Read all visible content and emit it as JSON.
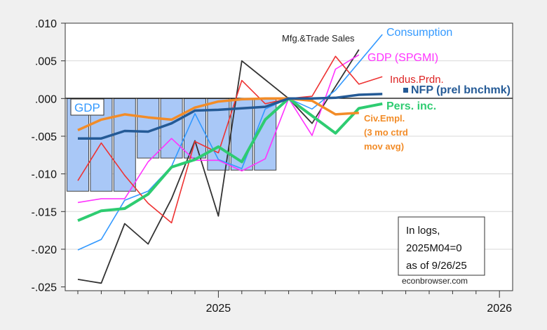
{
  "chart_data": {
    "type": "line",
    "title": "",
    "xlabel": "",
    "ylabel": "",
    "ylim": [
      -0.0255,
      0.01
    ],
    "grid": true,
    "x": [
      "2024M07",
      "2024M08",
      "2024M09",
      "2024M10",
      "2024M11",
      "2024M12",
      "2025M01",
      "2025M02",
      "2025M03",
      "2025M04",
      "2025M05",
      "2025M06",
      "2025M07",
      "2025M08"
    ],
    "x_tick_labels": [
      "2025",
      "2026"
    ],
    "y_ticks": [
      0.01,
      0.005,
      0.0,
      -0.005,
      -0.01,
      -0.015,
      -0.02,
      -0.025
    ],
    "y_tick_labels": [
      ".010",
      ".005",
      ".000",
      "-.005",
      "-.010",
      "-.015",
      "-.020",
      "-.025"
    ],
    "bars": {
      "name": "GDP",
      "color": "#a9c8f7",
      "values": [
        -0.0123,
        -0.0123,
        -0.0123,
        -0.0079,
        -0.0079,
        -0.0079,
        -0.0095,
        -0.0095,
        -0.0095,
        0,
        0,
        0
      ]
    },
    "series": [
      {
        "name": "Mfg.&Trade Sales",
        "color": "#333333",
        "width": 1.8,
        "values": [
          -0.024,
          -0.0245,
          -0.0166,
          -0.0193,
          -0.0133,
          -0.0056,
          -0.0156,
          0.005,
          0.0025,
          0,
          -0.0033,
          0.0016,
          0.0065,
          null
        ]
      },
      {
        "name": "Consumption",
        "color": "#3399ff",
        "width": 1.6,
        "values": [
          -0.0201,
          -0.0187,
          -0.0135,
          -0.0123,
          -0.009,
          -0.002,
          -0.0081,
          -0.0093,
          -0.0014,
          0,
          -0.0014,
          0.0011,
          0.0048,
          0.0085
        ]
      },
      {
        "name": "GDP (SPGMI)",
        "color": "#ff33ff",
        "width": 1.6,
        "values": [
          -0.0138,
          -0.0133,
          -0.0133,
          -0.0084,
          -0.0053,
          -0.0082,
          -0.0082,
          -0.0096,
          -0.008,
          0,
          -0.0049,
          0.0039,
          0.0058,
          null
        ]
      },
      {
        "name": "Indus.Prdn.",
        "color": "#ee3333",
        "width": 1.6,
        "values": [
          -0.0109,
          -0.0059,
          -0.0102,
          -0.0139,
          -0.0165,
          -0.0057,
          -0.0072,
          0.0024,
          -0.0007,
          0,
          0.0003,
          0.0056,
          0.0019,
          0.0029
        ]
      },
      {
        "name": "Pers. inc.",
        "color": "#2ecc71",
        "width": 4,
        "values": [
          -0.0162,
          -0.0149,
          -0.0146,
          -0.0127,
          -0.0091,
          -0.0081,
          -0.0064,
          -0.0084,
          -0.0028,
          0,
          -0.0023,
          -0.0046,
          -0.0013,
          -0.0007
        ]
      },
      {
        "name": "Civ.Empl.",
        "color": "#f28c28",
        "width": 3.5,
        "values": [
          -0.0042,
          -0.0028,
          -0.0021,
          -0.0025,
          -0.0028,
          -0.0012,
          -0.0004,
          -0.0001,
          0.0,
          0,
          -0.0003,
          -0.0021,
          -0.0019,
          null
        ]
      },
      {
        "name": "NFP (prel bnchmk)",
        "color": "#245a96",
        "width": 3.5,
        "values": [
          -0.0053,
          -0.0053,
          -0.0043,
          -0.0044,
          -0.0033,
          -0.0016,
          -0.0015,
          -0.0013,
          -0.0011,
          0,
          0.0,
          0.0001,
          0.0005,
          0.0006
        ]
      }
    ],
    "labels": {
      "mfg": "Mfg.&Trade Sales",
      "consumption": "Consumption",
      "gdp_spgmi": "GDP (SPGMI)",
      "indus": "Indus.Prdn.",
      "nfp": "NFP (prel bnchmk)",
      "pers": "Pers. inc.",
      "civ1": "Civ.Empl.",
      "civ2": "(3 mo ctrd",
      "civ3": "mov avg)",
      "gdp": "GDP"
    },
    "annotation": [
      "In logs,",
      "2025M04=0",
      "as of 9/26/25"
    ],
    "source": "econbrowser.com"
  }
}
